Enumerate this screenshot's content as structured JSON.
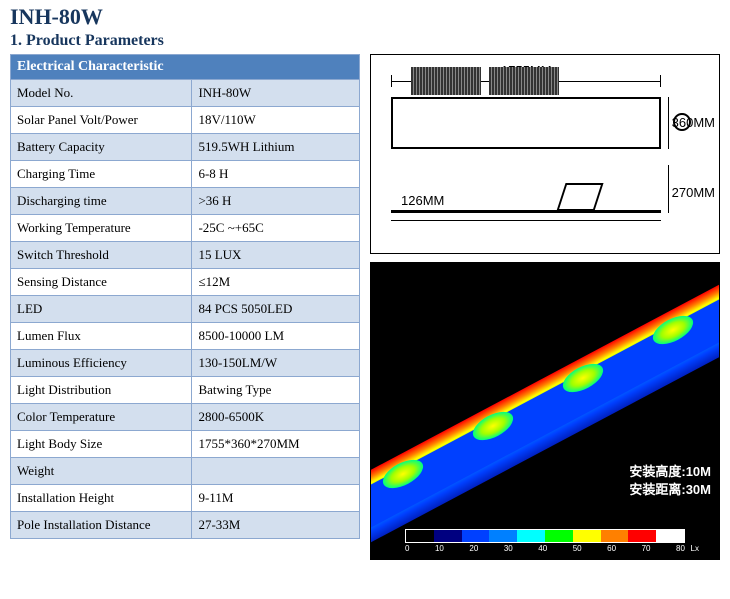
{
  "title": "INH-80W",
  "subtitle": "1. Product Parameters",
  "table": {
    "header": "Electrical Characteristic",
    "rows": [
      {
        "label": "Model No.",
        "value": "INH-80W"
      },
      {
        "label": "Solar Panel Volt/Power",
        "value": "18V/110W"
      },
      {
        "label": "Battery Capacity",
        "value": "519.5WH Lithium"
      },
      {
        "label": "Charging Time",
        "value": "6-8 H"
      },
      {
        "label": "Discharging time",
        "value": ">36 H"
      },
      {
        "label": "Working Temperature",
        "value": "-25C ~+65C"
      },
      {
        "label": "Switch Threshold",
        "value": "15 LUX"
      },
      {
        "label": "Sensing Distance",
        "value": "≤12M"
      },
      {
        "label": "LED",
        "value": "84 PCS 5050LED"
      },
      {
        "label": "Lumen Flux",
        "value": "8500-10000 LM"
      },
      {
        "label": "Luminous Efficiency",
        "value": "130-150LM/W"
      },
      {
        "label": "Light Distribution",
        "value": "Batwing Type"
      },
      {
        "label": "Color Temperature",
        "value": "2800-6500K"
      },
      {
        "label": "Light Body Size",
        "value": "1755*360*270MM"
      },
      {
        "label": "Weight",
        "value": ""
      },
      {
        "label": "Installation Height",
        "value": "9-11M"
      },
      {
        "label": "Pole Installation Distance",
        "value": "27-33M"
      }
    ]
  },
  "diagram": {
    "length_label": "1755MM",
    "width_label": "360MM",
    "height_label": "270MM",
    "thickness_label": "126MM"
  },
  "simulation": {
    "install_height_label": "安装高度:10M",
    "install_distance_label": "安装距离:30M",
    "lux_scale": {
      "colors": [
        "#000000",
        "#000080",
        "#0040ff",
        "#0080ff",
        "#00ffff",
        "#00ff00",
        "#ffff00",
        "#ff8000",
        "#ff0000",
        "#ffffff"
      ],
      "ticks": [
        "0",
        "10",
        "20",
        "30",
        "40",
        "50",
        "60",
        "70",
        "80"
      ],
      "unit": "Lx"
    }
  }
}
